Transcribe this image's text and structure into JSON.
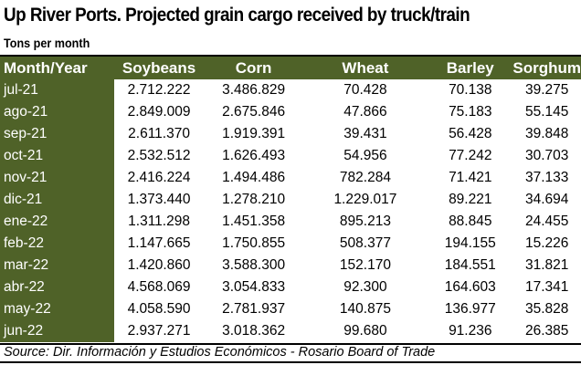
{
  "title": "Up River Ports. Projected grain cargo received by truck/train",
  "subtitle": "Tons per month",
  "columns": [
    "Month/Year",
    "Soybeans",
    "Corn",
    "Wheat",
    "Barley",
    "Sorghum"
  ],
  "rows": [
    [
      "jul-21",
      "2.712.222",
      "3.486.829",
      "70.428",
      "70.138",
      "39.275"
    ],
    [
      "ago-21",
      "2.849.009",
      "2.675.846",
      "47.866",
      "75.183",
      "55.145"
    ],
    [
      "sep-21",
      "2.611.370",
      "1.919.391",
      "39.431",
      "56.428",
      "39.848"
    ],
    [
      "oct-21",
      "2.532.512",
      "1.626.493",
      "54.956",
      "77.242",
      "30.703"
    ],
    [
      "nov-21",
      "2.416.224",
      "1.494.486",
      "782.284",
      "71.421",
      "37.133"
    ],
    [
      "dic-21",
      "1.373.440",
      "1.278.210",
      "1.229.017",
      "89.221",
      "34.694"
    ],
    [
      "ene-22",
      "1.311.298",
      "1.451.358",
      "895.213",
      "88.845",
      "24.455"
    ],
    [
      "feb-22",
      "1.147.665",
      "1.750.855",
      "508.377",
      "194.155",
      "15.226"
    ],
    [
      "mar-22",
      "1.420.860",
      "3.588.300",
      "152.170",
      "184.551",
      "31.821"
    ],
    [
      "abr-22",
      "4.568.069",
      "3.054.833",
      "92.300",
      "164.603",
      "17.341"
    ],
    [
      "may-22",
      "4.058.590",
      "2.781.937",
      "140.875",
      "136.977",
      "35.828"
    ],
    [
      "jun-22",
      "2.937.271",
      "3.018.362",
      "99.680",
      "91.236",
      "26.385"
    ]
  ],
  "source": "Source: Dir. Información y Estudios Económicos - Rosario Board of Trade",
  "colors": {
    "header_bg": "#4f6228",
    "header_text": "#ffffff"
  }
}
